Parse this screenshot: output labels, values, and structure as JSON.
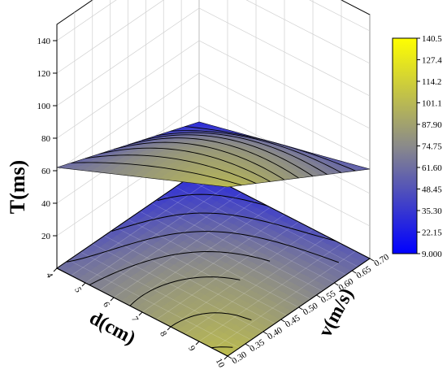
{
  "chart_data": {
    "type": "surface",
    "title": "",
    "xlabel": "d(cm)",
    "ylabel": "v(m/s)",
    "zlabel": "T(ms)",
    "x_ticks": [
      "4",
      "5",
      "6",
      "7",
      "8",
      "9",
      "10"
    ],
    "y_ticks": [
      "0.30",
      "0.35",
      "0.40",
      "0.45",
      "0.50",
      "0.55",
      "0.60",
      "0.65",
      "0.70"
    ],
    "z_ticks": [
      "20",
      "40",
      "60",
      "80",
      "100",
      "120",
      "140"
    ],
    "xlim": [
      4,
      10
    ],
    "ylim": [
      0.3,
      0.7
    ],
    "zlim": [
      0,
      150
    ],
    "colorbar": {
      "ticks": [
        "140.5",
        "127.4",
        "114.2",
        "101.1",
        "87.90",
        "74.75",
        "61.60",
        "48.45",
        "35.30",
        "22.15",
        "9.000"
      ],
      "min": 9.0,
      "max": 140.5,
      "colors": [
        "#0000ff",
        "#8a8a8a",
        "#ffff00"
      ]
    },
    "surface_samples": [
      {
        "d": 4,
        "v": 0.3,
        "T": 62
      },
      {
        "d": 4,
        "v": 0.7,
        "T": 30
      },
      {
        "d": 10,
        "v": 0.3,
        "T": 104
      },
      {
        "d": 10,
        "v": 0.7,
        "T": 55
      },
      {
        "d": 7,
        "v": 0.5,
        "T": 75
      }
    ],
    "grid": true,
    "colorbar_position": "right"
  }
}
